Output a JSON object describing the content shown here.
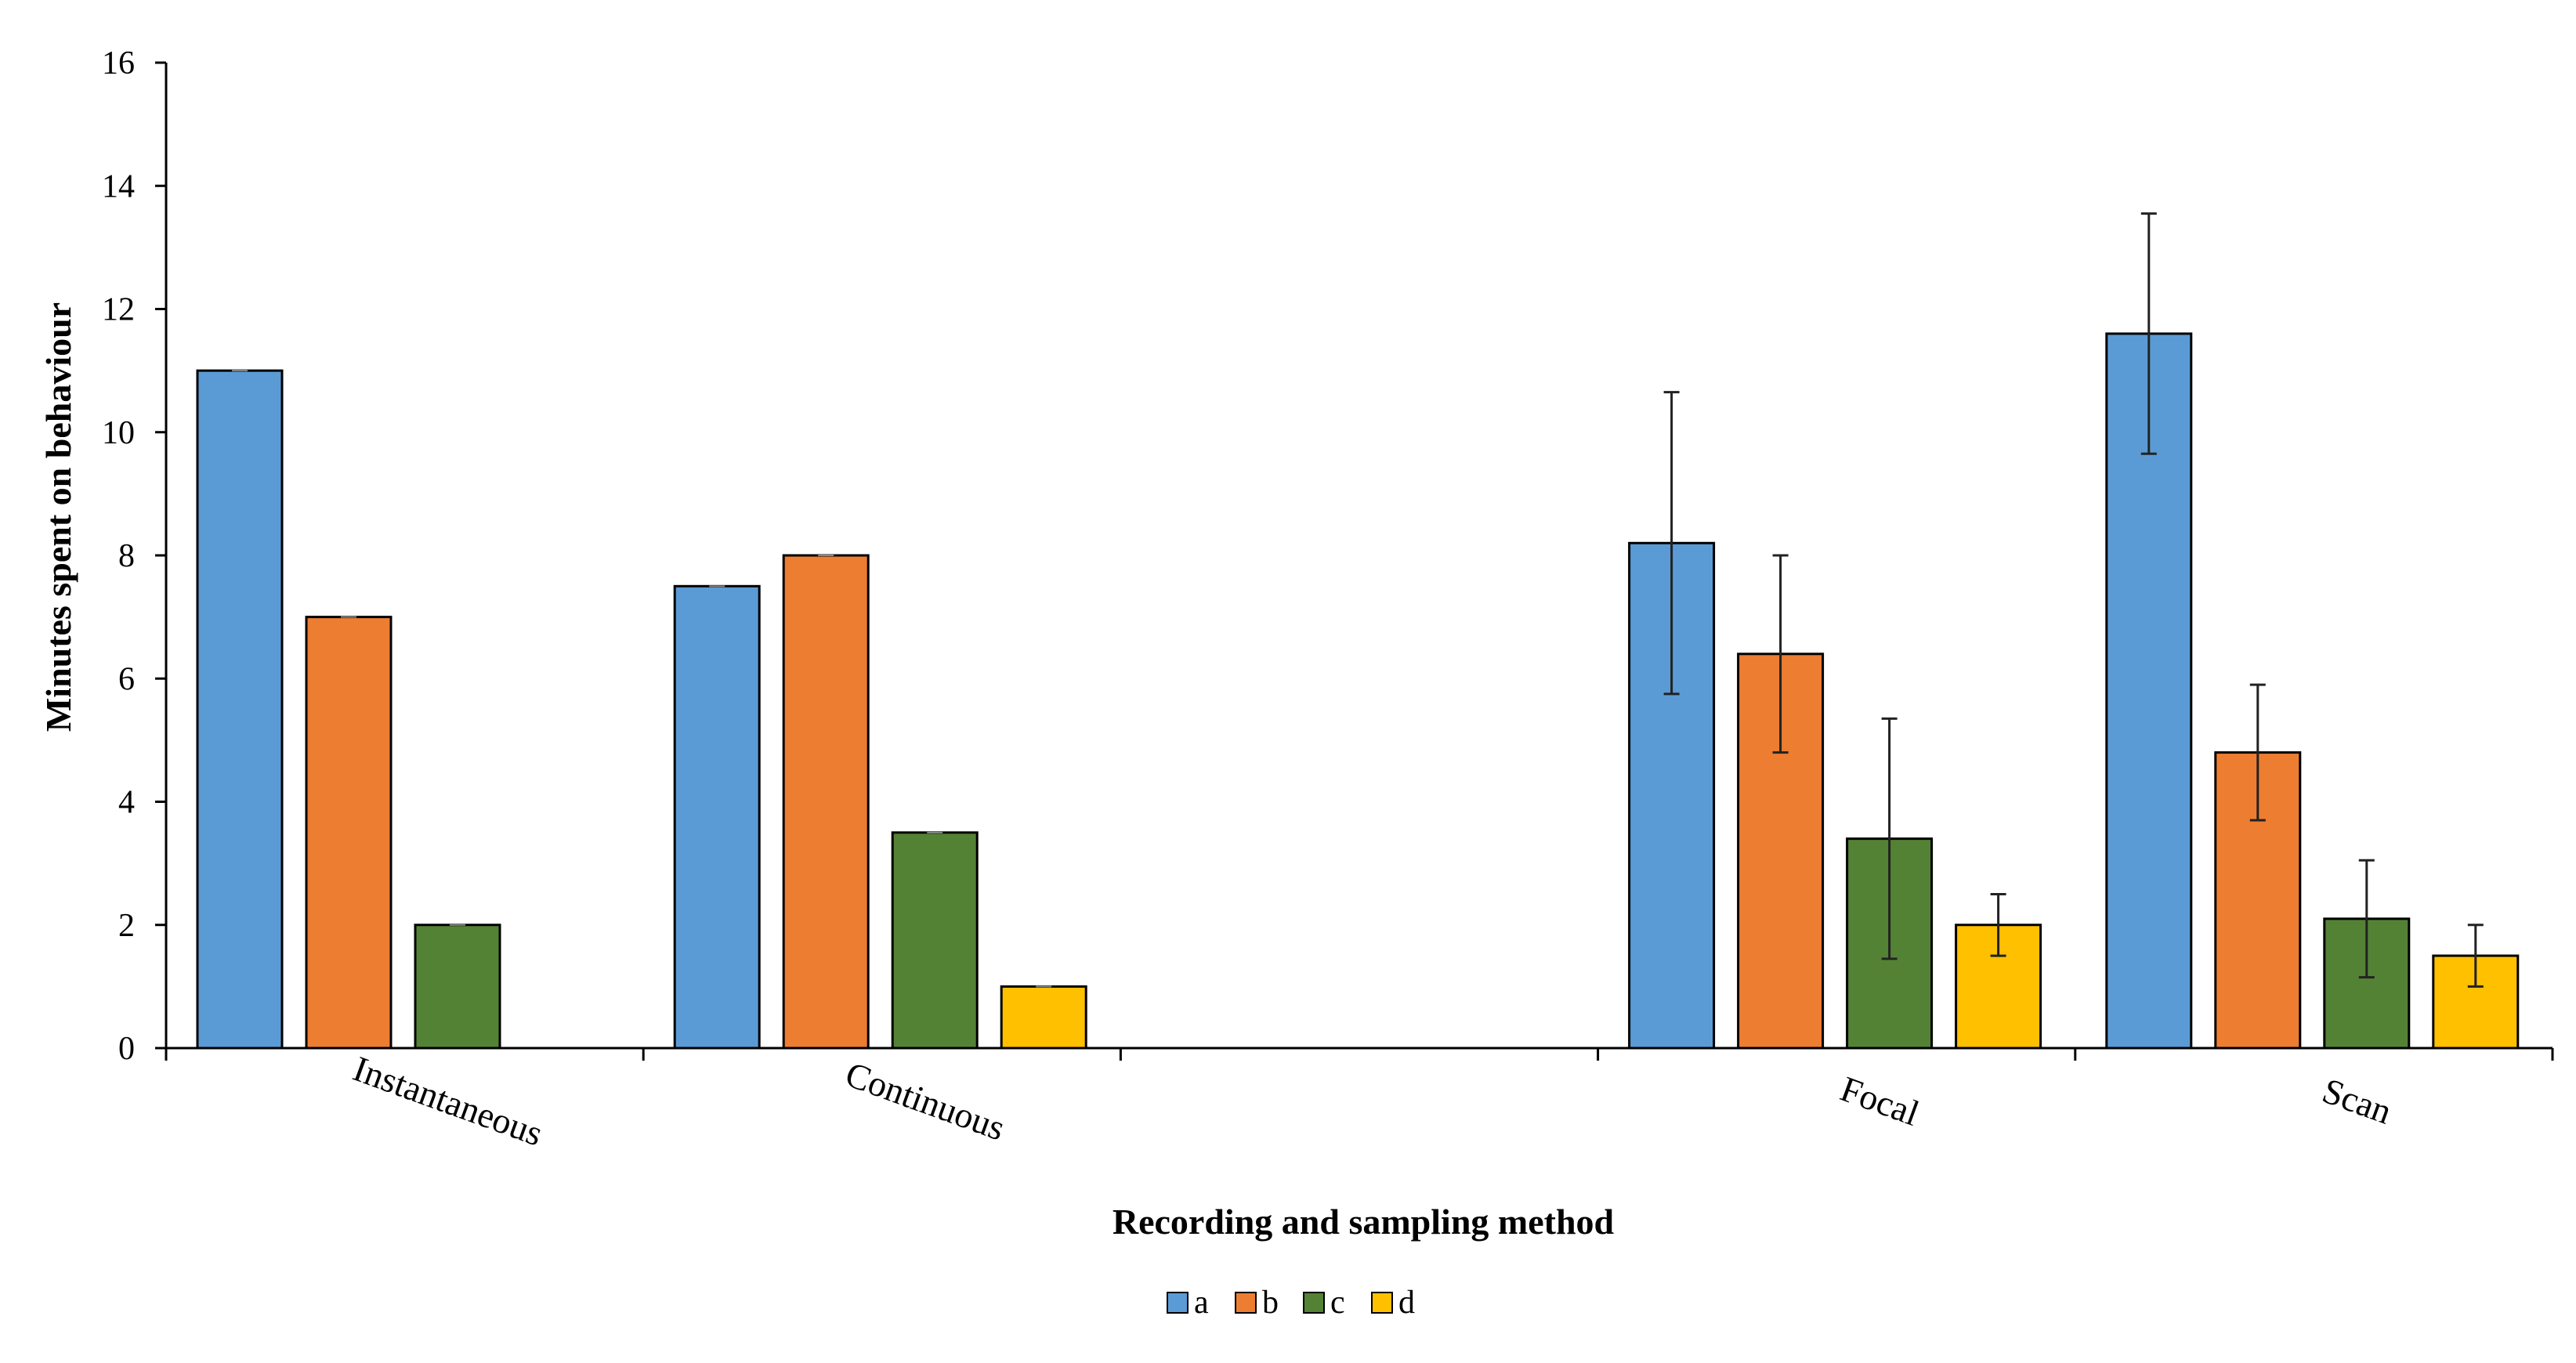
{
  "chart_data": {
    "type": "bar",
    "title": "",
    "xlabel": "Recording and sampling method",
    "ylabel": "Minutes spent on behaviour",
    "ylim": [
      0,
      16
    ],
    "yticks": [
      0,
      2,
      4,
      6,
      8,
      10,
      12,
      14,
      16
    ],
    "categories": [
      "Instantaneous",
      "Continuous",
      "",
      "Focal",
      "Scan"
    ],
    "series": [
      {
        "name": "a",
        "color": "#5B9BD5",
        "values": [
          11,
          7.5,
          null,
          8.2,
          11.6
        ],
        "error": [
          0,
          0,
          null,
          2.45,
          1.95
        ]
      },
      {
        "name": "b",
        "color": "#ED7D31",
        "values": [
          7,
          8,
          null,
          6.4,
          4.8
        ],
        "error": [
          0,
          0,
          null,
          1.6,
          1.1
        ]
      },
      {
        "name": "c",
        "color": "#548235",
        "values": [
          2,
          3.5,
          null,
          3.4,
          2.1
        ],
        "error": [
          0,
          0,
          null,
          1.95,
          0.95
        ]
      },
      {
        "name": "d",
        "color": "#FFC000",
        "values": [
          null,
          1,
          null,
          2,
          1.5
        ],
        "error": [
          null,
          0,
          null,
          0.5,
          0.5
        ]
      }
    ],
    "grid": false,
    "legend_position": "bottom"
  }
}
